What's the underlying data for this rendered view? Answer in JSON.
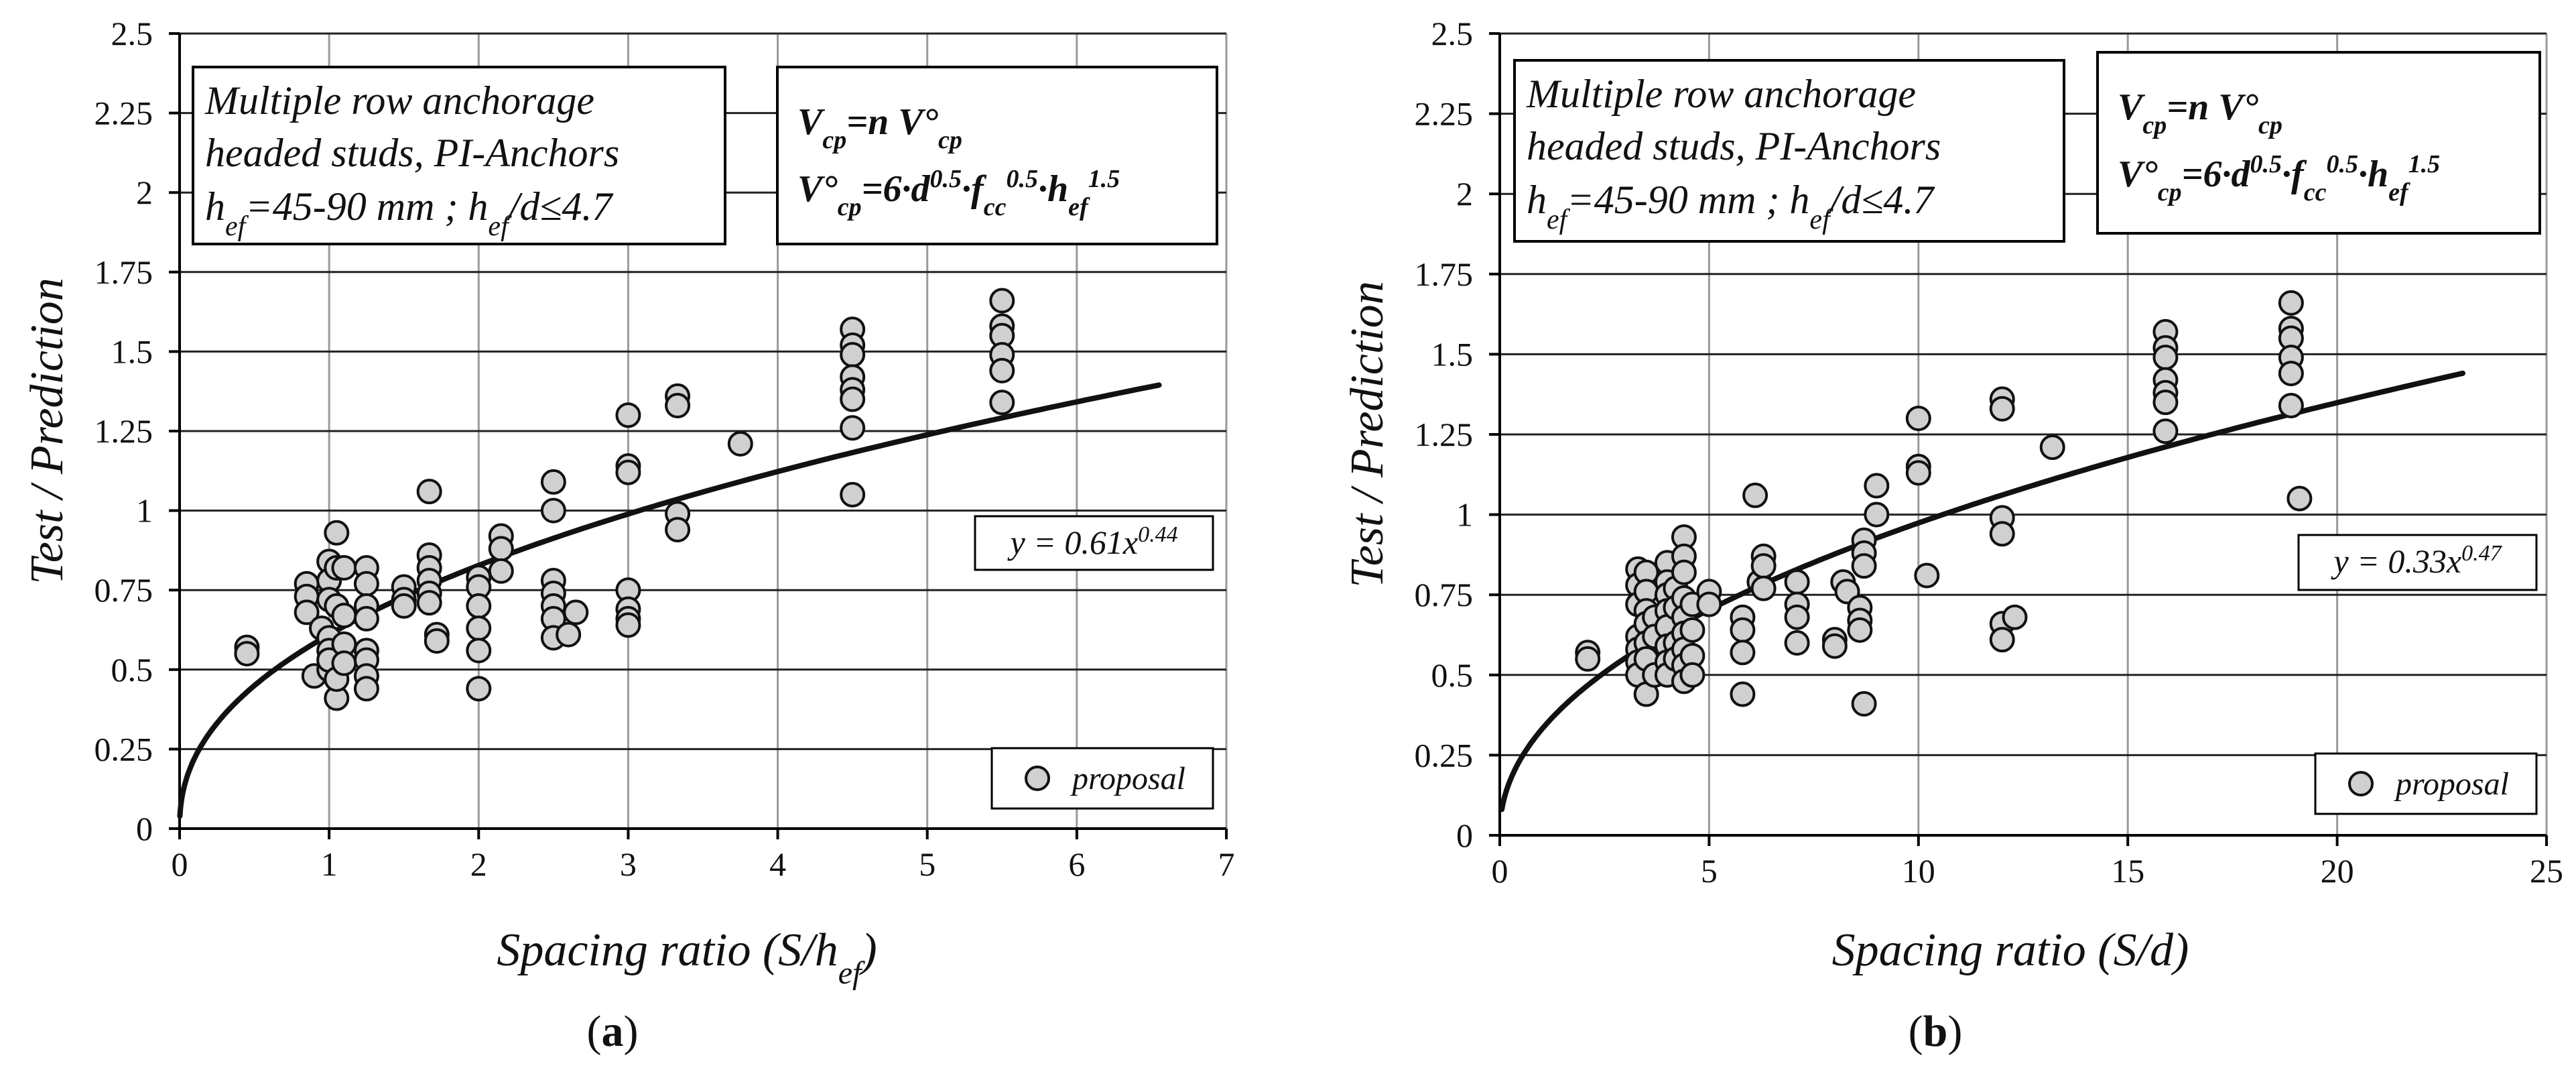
{
  "chart_data": [
    {
      "type": "scatter",
      "panel_label": "(a)",
      "panel_letter": "a",
      "xlabel": "Spacing ratio (S/hef)",
      "xlabel_parts": {
        "pre": "Spacing ratio (S/h",
        "sub": "ef",
        "post": ")"
      },
      "ylabel": "Test / Prediction",
      "xlim": [
        0,
        7
      ],
      "ylim": [
        0,
        2.5
      ],
      "xticks": [
        0,
        1,
        2,
        3,
        4,
        5,
        6,
        7
      ],
      "xtick_labels": [
        "0",
        "1",
        "2",
        "3",
        "4",
        "5",
        "6",
        "7"
      ],
      "yticks": [
        0,
        0.25,
        0.5,
        0.75,
        1,
        1.25,
        1.5,
        1.75,
        2,
        2.25,
        2.5
      ],
      "ytick_labels": [
        "0",
        "0.25",
        "0.5",
        "0.75",
        "1",
        "1.25",
        "1.5",
        "1.75",
        "2",
        "2.25",
        "2.5"
      ],
      "grid": true,
      "legend": {
        "label": "proposal",
        "position": "bottom-right"
      },
      "annotation_left": {
        "line1": "Multiple row anchorage",
        "line2": "headed studs, PI-Anchors",
        "line3_text": "hef=45-90 mm ; hef/d≤4.7"
      },
      "annotation_right": {
        "line1_text": "Vcp=n V°cp",
        "line2_text": "V°cp=6·d0.5·fcc0.5·hef1.5"
      },
      "fit": {
        "label_text": "y = 0.61x0.44",
        "a": 0.61,
        "b": 0.44,
        "x_start": 0.002,
        "x_end": 6.55
      },
      "series": [
        {
          "name": "proposal",
          "points": [
            [
              0.45,
              0.57
            ],
            [
              0.45,
              0.55
            ],
            [
              0.85,
              0.77
            ],
            [
              0.85,
              0.73
            ],
            [
              0.85,
              0.68
            ],
            [
              0.9,
              0.48
            ],
            [
              0.95,
              0.63
            ],
            [
              1.0,
              0.84
            ],
            [
              1.0,
              0.78
            ],
            [
              1.0,
              0.72
            ],
            [
              1.0,
              0.6
            ],
            [
              1.0,
              0.56
            ],
            [
              1.0,
              0.5
            ],
            [
              1.0,
              0.53
            ],
            [
              1.05,
              0.93
            ],
            [
              1.05,
              0.82
            ],
            [
              1.05,
              0.7
            ],
            [
              1.05,
              0.41
            ],
            [
              1.05,
              0.47
            ],
            [
              1.1,
              0.82
            ],
            [
              1.1,
              0.67
            ],
            [
              1.1,
              0.58
            ],
            [
              1.1,
              0.52
            ],
            [
              1.25,
              0.82
            ],
            [
              1.25,
              0.77
            ],
            [
              1.25,
              0.7
            ],
            [
              1.25,
              0.66
            ],
            [
              1.25,
              0.56
            ],
            [
              1.25,
              0.53
            ],
            [
              1.25,
              0.48
            ],
            [
              1.25,
              0.44
            ],
            [
              1.5,
              0.76
            ],
            [
              1.5,
              0.72
            ],
            [
              1.5,
              0.7
            ],
            [
              1.67,
              1.06
            ],
            [
              1.67,
              0.86
            ],
            [
              1.67,
              0.82
            ],
            [
              1.67,
              0.78
            ],
            [
              1.67,
              0.74
            ],
            [
              1.67,
              0.71
            ],
            [
              1.72,
              0.61
            ],
            [
              1.72,
              0.59
            ],
            [
              2.0,
              0.79
            ],
            [
              2.0,
              0.76
            ],
            [
              2.0,
              0.7
            ],
            [
              2.0,
              0.63
            ],
            [
              2.0,
              0.56
            ],
            [
              2.0,
              0.44
            ],
            [
              2.15,
              0.92
            ],
            [
              2.15,
              0.88
            ],
            [
              2.15,
              0.81
            ],
            [
              2.5,
              1.09
            ],
            [
              2.5,
              1.0
            ],
            [
              2.5,
              0.78
            ],
            [
              2.5,
              0.74
            ],
            [
              2.5,
              0.7
            ],
            [
              2.5,
              0.66
            ],
            [
              2.5,
              0.6
            ],
            [
              2.65,
              0.68
            ],
            [
              2.6,
              0.61
            ],
            [
              3.0,
              1.3
            ],
            [
              3.0,
              1.14
            ],
            [
              3.0,
              1.12
            ],
            [
              3.0,
              0.75
            ],
            [
              3.0,
              0.69
            ],
            [
              3.0,
              0.66
            ],
            [
              3.0,
              0.64
            ],
            [
              3.33,
              1.36
            ],
            [
              3.33,
              1.33
            ],
            [
              3.33,
              0.99
            ],
            [
              3.33,
              0.94
            ],
            [
              3.75,
              1.21
            ],
            [
              4.5,
              1.57
            ],
            [
              4.5,
              1.52
            ],
            [
              4.5,
              1.49
            ],
            [
              4.5,
              1.42
            ],
            [
              4.5,
              1.38
            ],
            [
              4.5,
              1.35
            ],
            [
              4.5,
              1.26
            ],
            [
              4.5,
              1.05
            ],
            [
              5.5,
              1.66
            ],
            [
              5.5,
              1.58
            ],
            [
              5.5,
              1.55
            ],
            [
              5.5,
              1.49
            ],
            [
              5.5,
              1.44
            ],
            [
              5.5,
              1.34
            ]
          ]
        }
      ]
    },
    {
      "type": "scatter",
      "panel_label": "(b)",
      "panel_letter": "b",
      "xlabel": "Spacing ratio (S/d)",
      "xlabel_parts": {
        "pre": "Spacing ratio (S/d)",
        "sub": "",
        "post": ""
      },
      "ylabel": "Test / Prediction",
      "xlim": [
        0,
        25
      ],
      "ylim": [
        0,
        2.5
      ],
      "xticks": [
        0,
        5,
        10,
        15,
        20,
        25
      ],
      "xtick_labels": [
        "0",
        "5",
        "10",
        "15",
        "20",
        "25"
      ],
      "yticks": [
        0,
        0.25,
        0.5,
        0.75,
        1,
        1.25,
        1.5,
        1.75,
        2,
        2.25,
        2.5
      ],
      "ytick_labels": [
        "0",
        "0.25",
        "0.5",
        "0.75",
        "1",
        "1.25",
        "1.5",
        "1.75",
        "2",
        "2.25",
        "2.5"
      ],
      "grid": true,
      "legend": {
        "label": "proposal",
        "position": "bottom-right"
      },
      "annotation_left": {
        "line1": "Multiple row anchorage",
        "line2": "headed studs, PI-Anchors",
        "line3_text": "hef=45-90 mm ; hef/d≤4.7"
      },
      "annotation_right": {
        "line1_text": "Vcp=n V°cp",
        "line2_text": "V°cp=6·d0.5·fcc0.5·hef1.5"
      },
      "fit": {
        "label_text": "y = 0.33x0.47",
        "a": 0.33,
        "b": 0.47,
        "x_start": 0.05,
        "x_end": 23.0
      },
      "series": [
        {
          "name": "proposal",
          "points": [
            [
              2.1,
              0.57
            ],
            [
              2.1,
              0.55
            ],
            [
              3.3,
              0.83
            ],
            [
              3.3,
              0.78
            ],
            [
              3.3,
              0.72
            ],
            [
              3.3,
              0.62
            ],
            [
              3.3,
              0.58
            ],
            [
              3.3,
              0.54
            ],
            [
              3.3,
              0.5
            ],
            [
              3.5,
              0.82
            ],
            [
              3.5,
              0.76
            ],
            [
              3.5,
              0.7
            ],
            [
              3.5,
              0.66
            ],
            [
              3.5,
              0.6
            ],
            [
              3.5,
              0.55
            ],
            [
              3.5,
              0.44
            ],
            [
              3.7,
              0.68
            ],
            [
              3.7,
              0.62
            ],
            [
              3.7,
              0.5
            ],
            [
              4.0,
              0.85
            ],
            [
              4.0,
              0.79
            ],
            [
              4.0,
              0.75
            ],
            [
              4.0,
              0.7
            ],
            [
              4.0,
              0.65
            ],
            [
              4.0,
              0.59
            ],
            [
              4.0,
              0.54
            ],
            [
              4.0,
              0.5
            ],
            [
              4.2,
              0.77
            ],
            [
              4.2,
              0.71
            ],
            [
              4.2,
              0.6
            ],
            [
              4.2,
              0.55
            ],
            [
              4.4,
              0.93
            ],
            [
              4.4,
              0.87
            ],
            [
              4.4,
              0.82
            ],
            [
              4.4,
              0.74
            ],
            [
              4.4,
              0.68
            ],
            [
              4.4,
              0.63
            ],
            [
              4.4,
              0.58
            ],
            [
              4.4,
              0.53
            ],
            [
              4.4,
              0.48
            ],
            [
              4.6,
              0.72
            ],
            [
              4.6,
              0.64
            ],
            [
              4.6,
              0.56
            ],
            [
              4.6,
              0.5
            ],
            [
              5.0,
              0.76
            ],
            [
              5.0,
              0.72
            ],
            [
              5.8,
              0.68
            ],
            [
              5.8,
              0.64
            ],
            [
              5.8,
              0.57
            ],
            [
              5.8,
              0.44
            ],
            [
              6.1,
              1.06
            ],
            [
              6.2,
              0.79
            ],
            [
              6.3,
              0.87
            ],
            [
              6.3,
              0.84
            ],
            [
              6.3,
              0.77
            ],
            [
              7.1,
              0.79
            ],
            [
              7.1,
              0.72
            ],
            [
              7.1,
              0.68
            ],
            [
              7.1,
              0.6
            ],
            [
              8.0,
              0.61
            ],
            [
              8.0,
              0.59
            ],
            [
              8.2,
              0.79
            ],
            [
              8.3,
              0.76
            ],
            [
              8.6,
              0.71
            ],
            [
              8.6,
              0.67
            ],
            [
              8.6,
              0.64
            ],
            [
              8.7,
              0.92
            ],
            [
              8.7,
              0.88
            ],
            [
              8.7,
              0.84
            ],
            [
              8.7,
              0.41
            ],
            [
              9.0,
              1.09
            ],
            [
              9.0,
              1.0
            ],
            [
              10.0,
              1.3
            ],
            [
              10.0,
              1.15
            ],
            [
              10.0,
              1.13
            ],
            [
              10.2,
              0.81
            ],
            [
              12.0,
              1.36
            ],
            [
              12.0,
              1.33
            ],
            [
              12.0,
              0.99
            ],
            [
              12.0,
              0.94
            ],
            [
              12.0,
              0.66
            ],
            [
              12.0,
              0.61
            ],
            [
              12.3,
              0.68
            ],
            [
              13.2,
              1.21
            ],
            [
              15.9,
              1.57
            ],
            [
              15.9,
              1.52
            ],
            [
              15.9,
              1.49
            ],
            [
              15.9,
              1.42
            ],
            [
              15.9,
              1.38
            ],
            [
              15.9,
              1.35
            ],
            [
              15.9,
              1.26
            ],
            [
              18.9,
              1.66
            ],
            [
              18.9,
              1.58
            ],
            [
              18.9,
              1.55
            ],
            [
              18.9,
              1.49
            ],
            [
              18.9,
              1.44
            ],
            [
              18.9,
              1.34
            ],
            [
              19.1,
              1.05
            ]
          ]
        }
      ]
    }
  ]
}
